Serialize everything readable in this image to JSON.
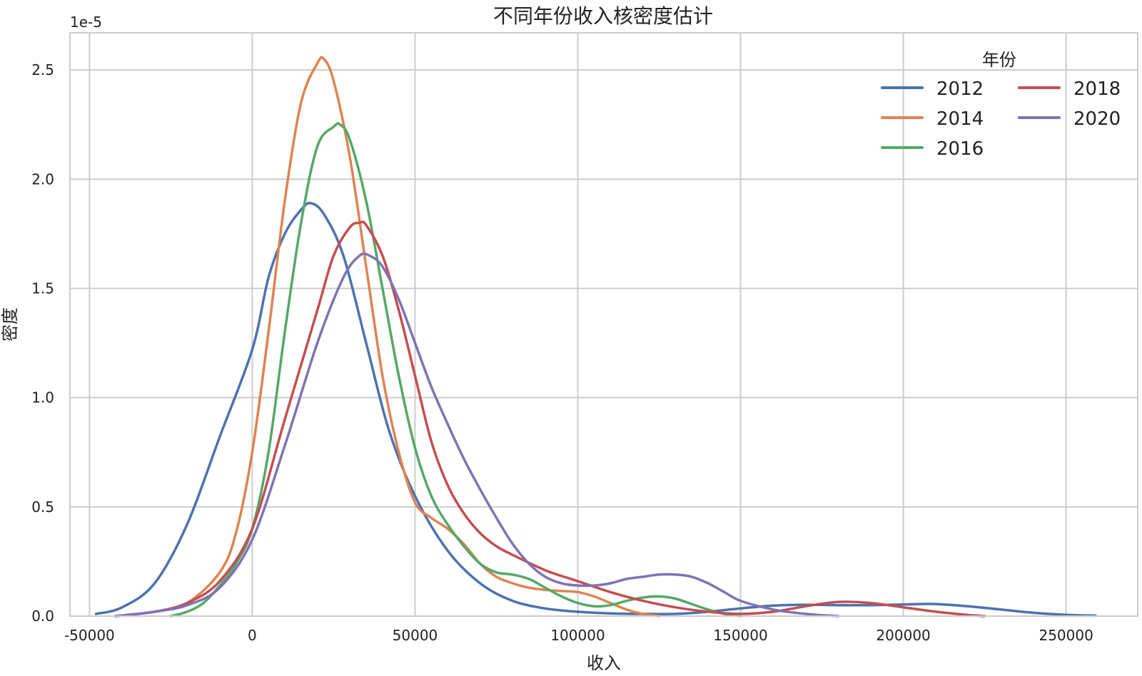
{
  "chart_data": {
    "type": "line",
    "title": "不同年份收入核密度估计",
    "xlabel": "收入",
    "ylabel": "密度",
    "y_offset_label": "1e-5",
    "xlim": [
      -56000,
      272000
    ],
    "ylim": [
      0,
      2.67
    ],
    "xticks": [
      -50000,
      0,
      50000,
      100000,
      150000,
      200000,
      250000
    ],
    "xtick_labels": [
      "-50000",
      "0",
      "50000",
      "100000",
      "150000",
      "200000",
      "250000"
    ],
    "yticks": [
      0.0,
      0.5,
      1.0,
      1.5,
      2.0,
      2.5
    ],
    "ytick_labels": [
      "0.0",
      "0.5",
      "1.0",
      "1.5",
      "2.0",
      "2.5"
    ],
    "grid": true,
    "legend": {
      "title": "年份",
      "position": "top-right",
      "columns": 2
    },
    "series": [
      {
        "name": "2012",
        "color": "#4C72B0",
        "x": [
          -48000,
          -40000,
          -30000,
          -20000,
          -10000,
          0,
          5000,
          10000,
          15000,
          18000,
          22000,
          28000,
          35000,
          42000,
          50000,
          60000,
          70000,
          80000,
          90000,
          100000,
          110000,
          120000,
          130000,
          140000,
          150000,
          160000,
          170000,
          180000,
          190000,
          200000,
          205000,
          210000,
          220000,
          230000,
          240000,
          250000,
          259000
        ],
        "y": [
          0.01,
          0.04,
          0.15,
          0.42,
          0.82,
          1.22,
          1.55,
          1.75,
          1.86,
          1.89,
          1.84,
          1.65,
          1.25,
          0.85,
          0.55,
          0.3,
          0.15,
          0.07,
          0.035,
          0.02,
          0.012,
          0.01,
          0.01,
          0.02,
          0.035,
          0.048,
          0.052,
          0.05,
          0.05,
          0.053,
          0.055,
          0.055,
          0.045,
          0.03,
          0.015,
          0.006,
          0.002
        ]
      },
      {
        "name": "2014",
        "color": "#DD8452",
        "x": [
          -42000,
          -30000,
          -20000,
          -10000,
          -5000,
          0,
          5000,
          10000,
          15000,
          20000,
          22000,
          25000,
          30000,
          35000,
          40000,
          45000,
          50000,
          55000,
          60000,
          65000,
          70000,
          75000,
          80000,
          85000,
          90000,
          95000,
          100000,
          105000,
          110000,
          115000,
          120000,
          125000
        ],
        "y": [
          0.0,
          0.02,
          0.06,
          0.2,
          0.38,
          0.75,
          1.3,
          1.9,
          2.35,
          2.53,
          2.55,
          2.45,
          2.1,
          1.6,
          1.1,
          0.75,
          0.52,
          0.45,
          0.4,
          0.33,
          0.24,
          0.18,
          0.15,
          0.13,
          0.12,
          0.115,
          0.11,
          0.09,
          0.06,
          0.03,
          0.01,
          0.0
        ]
      },
      {
        "name": "2016",
        "color": "#55A868",
        "x": [
          -25000,
          -20000,
          -15000,
          -10000,
          -5000,
          0,
          5000,
          10000,
          15000,
          20000,
          25000,
          27000,
          30000,
          35000,
          40000,
          45000,
          50000,
          55000,
          60000,
          65000,
          70000,
          75000,
          80000,
          85000,
          90000,
          95000,
          100000,
          105000,
          110000,
          115000,
          120000,
          125000,
          130000,
          135000,
          140000,
          145000,
          150000
        ],
        "y": [
          0.0,
          0.02,
          0.06,
          0.14,
          0.24,
          0.4,
          0.75,
          1.3,
          1.8,
          2.15,
          2.24,
          2.25,
          2.18,
          1.9,
          1.5,
          1.1,
          0.77,
          0.55,
          0.42,
          0.32,
          0.24,
          0.2,
          0.19,
          0.17,
          0.13,
          0.09,
          0.06,
          0.045,
          0.05,
          0.07,
          0.085,
          0.09,
          0.08,
          0.055,
          0.03,
          0.01,
          0.0
        ]
      },
      {
        "name": "2018",
        "color": "#C44E52",
        "x": [
          -42000,
          -30000,
          -20000,
          -10000,
          0,
          10000,
          20000,
          25000,
          30000,
          33000,
          35000,
          40000,
          45000,
          50000,
          55000,
          60000,
          65000,
          70000,
          75000,
          80000,
          90000,
          100000,
          110000,
          120000,
          130000,
          140000,
          150000,
          160000,
          170000,
          180000,
          190000,
          200000,
          210000,
          220000,
          225000
        ],
        "y": [
          0.0,
          0.02,
          0.06,
          0.16,
          0.4,
          0.9,
          1.4,
          1.65,
          1.78,
          1.8,
          1.79,
          1.65,
          1.4,
          1.1,
          0.8,
          0.6,
          0.47,
          0.38,
          0.32,
          0.28,
          0.21,
          0.16,
          0.11,
          0.07,
          0.04,
          0.02,
          0.01,
          0.02,
          0.045,
          0.065,
          0.06,
          0.04,
          0.02,
          0.005,
          0.0
        ]
      },
      {
        "name": "2020",
        "color": "#8172B3",
        "x": [
          -42000,
          -30000,
          -20000,
          -10000,
          0,
          10000,
          20000,
          28000,
          33000,
          36000,
          40000,
          45000,
          50000,
          55000,
          60000,
          65000,
          70000,
          75000,
          80000,
          85000,
          90000,
          95000,
          100000,
          105000,
          110000,
          115000,
          120000,
          125000,
          130000,
          135000,
          140000,
          145000,
          150000,
          160000,
          170000,
          180000
        ],
        "y": [
          0.0,
          0.02,
          0.05,
          0.13,
          0.35,
          0.78,
          1.25,
          1.55,
          1.65,
          1.65,
          1.6,
          1.45,
          1.25,
          1.05,
          0.88,
          0.72,
          0.58,
          0.45,
          0.33,
          0.24,
          0.18,
          0.15,
          0.14,
          0.14,
          0.15,
          0.17,
          0.18,
          0.19,
          0.19,
          0.18,
          0.15,
          0.11,
          0.07,
          0.03,
          0.01,
          0.0
        ]
      }
    ]
  }
}
